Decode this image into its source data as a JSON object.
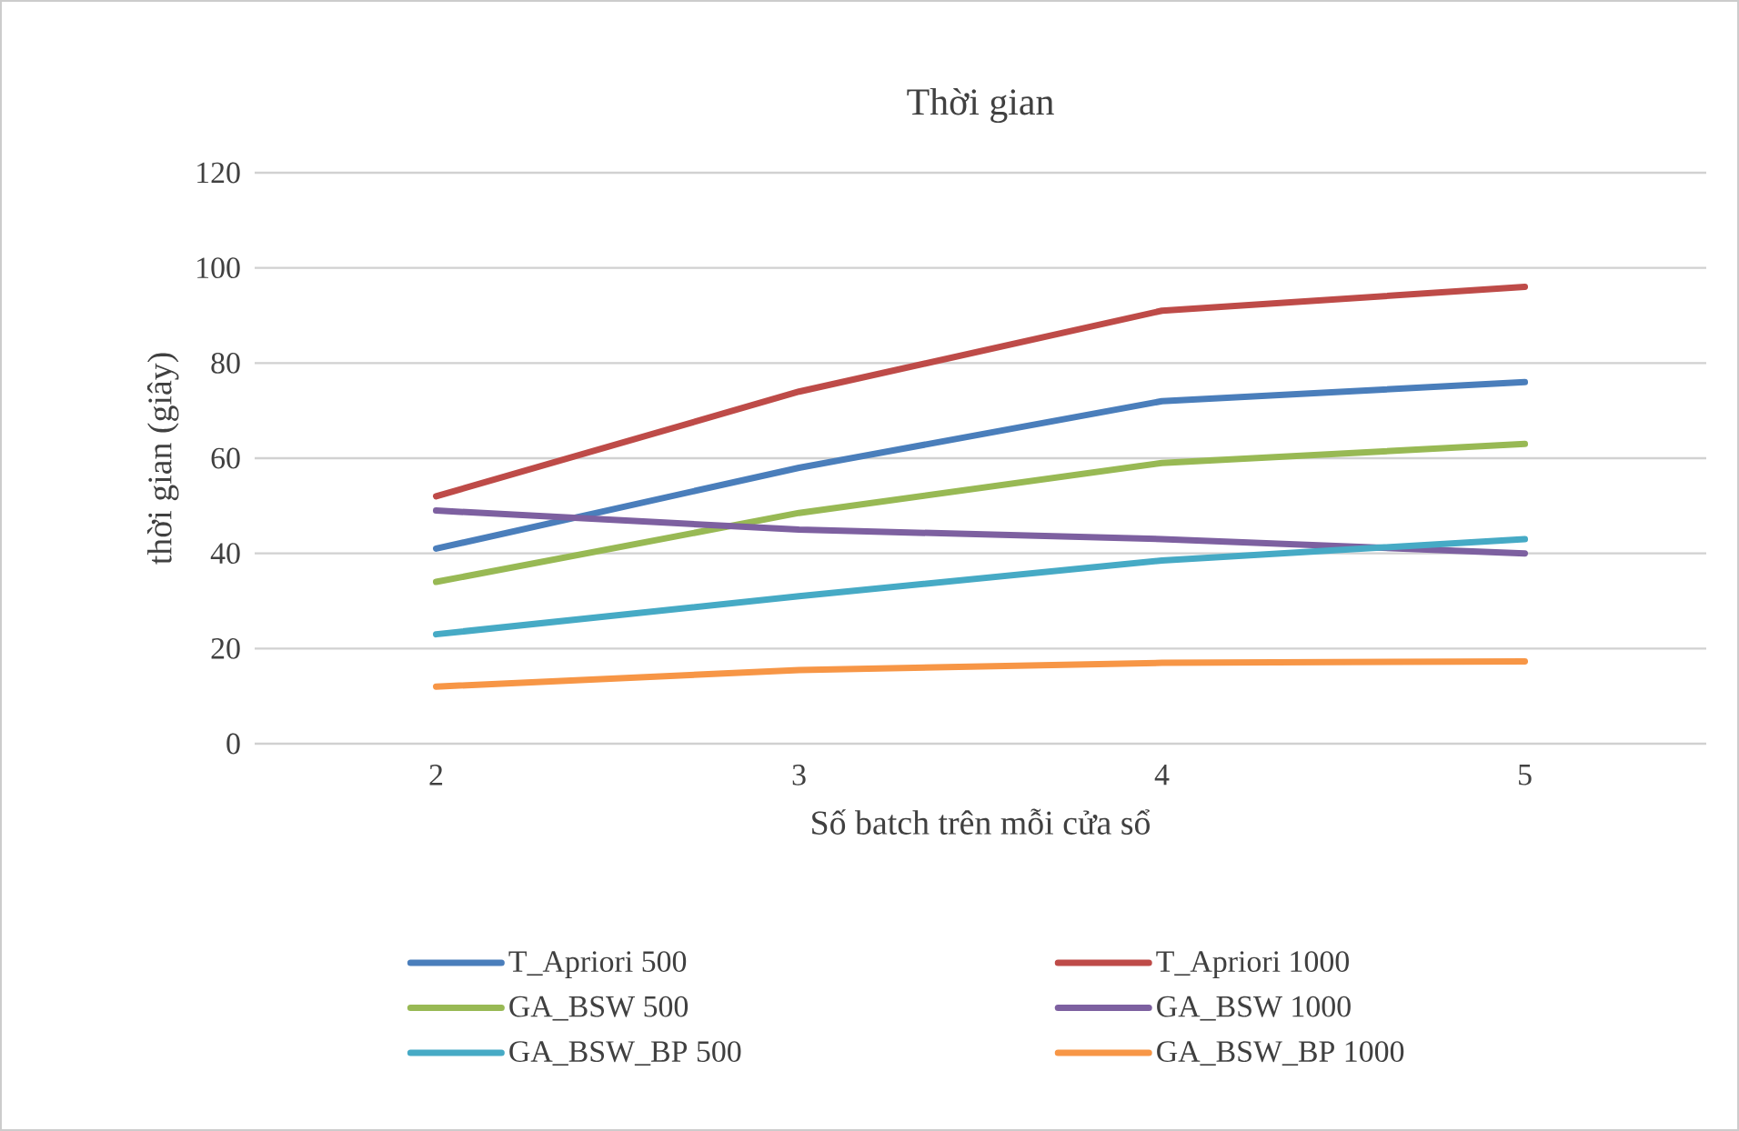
{
  "chart_data": {
    "type": "line",
    "title": "Thời gian",
    "xlabel": "Số batch trên mỗi cửa sổ",
    "ylabel": "thời gian (giây)",
    "categories": [
      "2",
      "3",
      "4",
      "5"
    ],
    "series": [
      {
        "name": "T_Apriori 500",
        "color": "#4a7ebb",
        "values": [
          41,
          58,
          72,
          76
        ]
      },
      {
        "name": "T_Apriori 1000",
        "color": "#be4b48",
        "values": [
          52,
          74,
          91,
          96
        ]
      },
      {
        "name": "GA_BSW 500",
        "color": "#98b954",
        "values": [
          34,
          48.5,
          59,
          63
        ]
      },
      {
        "name": "GA_BSW 1000",
        "color": "#7d60a0",
        "values": [
          49,
          45,
          43,
          40
        ]
      },
      {
        "name": "GA_BSW_BP 500",
        "color": "#46aac5",
        "values": [
          23,
          31,
          38.5,
          43
        ]
      },
      {
        "name": "GA_BSW_BP 1000",
        "color": "#f79646",
        "values": [
          12,
          15.5,
          17,
          17.3
        ]
      }
    ],
    "ylim": [
      0,
      120
    ],
    "yticks": [
      0,
      20,
      40,
      60,
      80,
      100,
      120
    ],
    "grid": "y",
    "legend": "bottom"
  }
}
